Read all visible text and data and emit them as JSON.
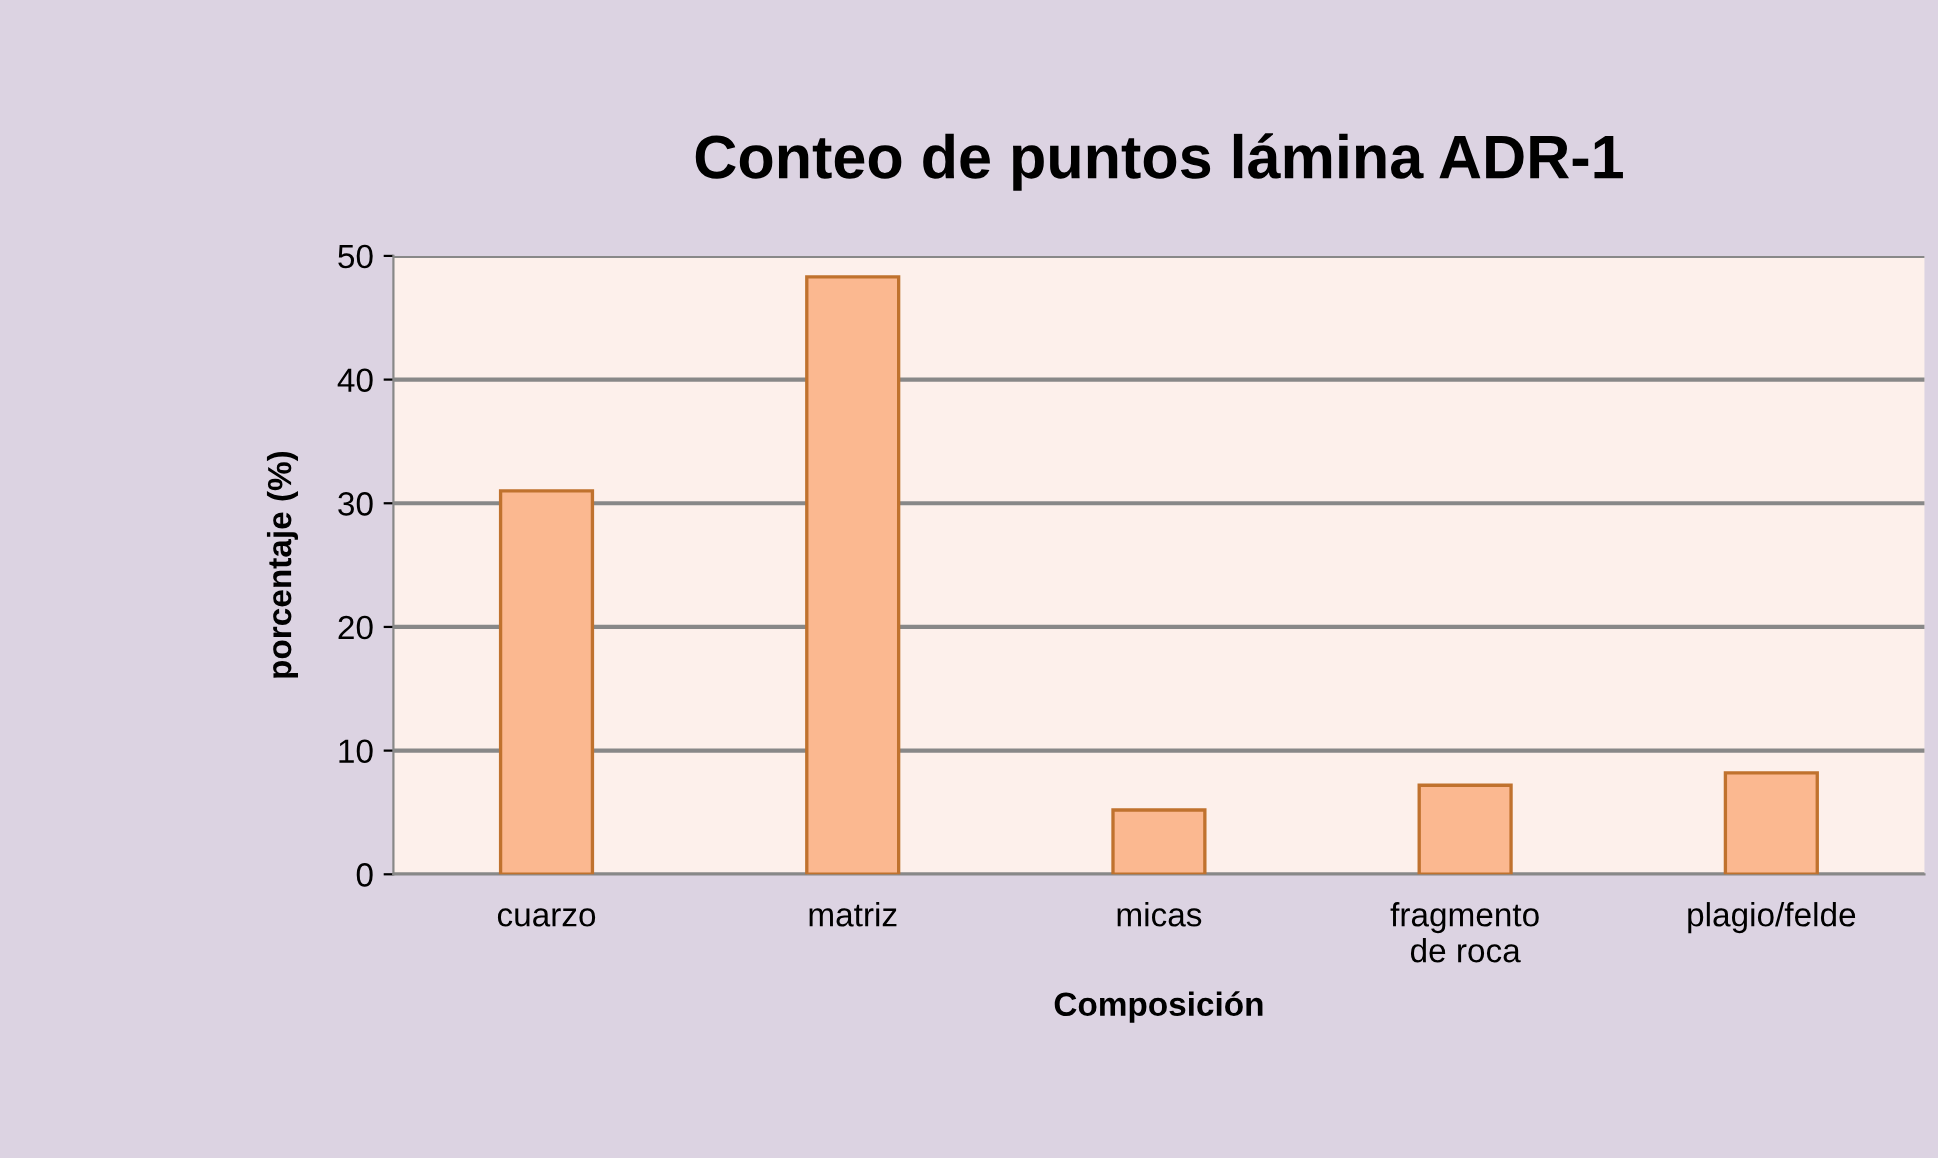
{
  "chart_data": {
    "type": "bar",
    "title": "Conteo de puntos lámina ADR-1",
    "xlabel": "Composición",
    "ylabel": "porcentaje (%)",
    "categories": [
      "cuarzo",
      "matriz",
      "micas",
      "fragmento\nde roca",
      "plagio/felde"
    ],
    "values": [
      31.0,
      48.3,
      5.2,
      7.2,
      8.2
    ],
    "color": "#fbb890",
    "ylim": [
      0,
      50
    ],
    "yticks": [
      0,
      10,
      20,
      30,
      40,
      50
    ],
    "grid": "y",
    "legend": false
  }
}
